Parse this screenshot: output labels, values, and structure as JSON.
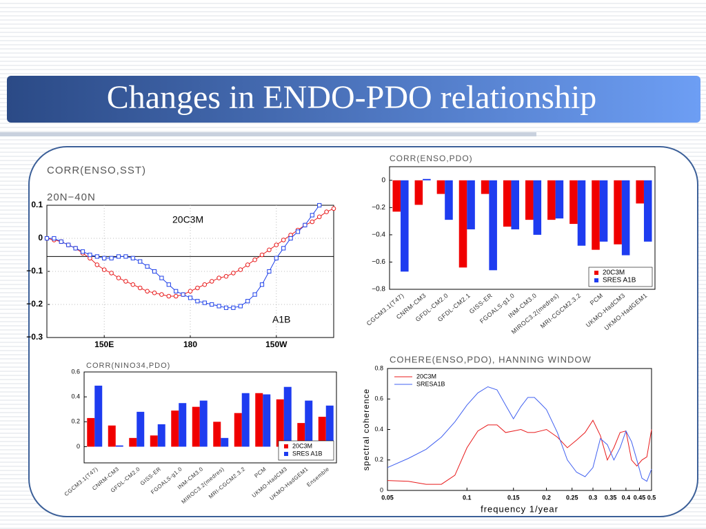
{
  "title": "Changes in ENDO-PDO relationship",
  "chart_data": [
    {
      "type": "line",
      "title": "CORR(ENSO,SST)",
      "subtitle": "20N−40N",
      "x": [
        130,
        132.5,
        135,
        137.5,
        140,
        142.5,
        145,
        147.5,
        150,
        152.5,
        155,
        157.5,
        160,
        162.5,
        165,
        167.5,
        170,
        172.5,
        175,
        177.5,
        180,
        182.5,
        185,
        187.5,
        190,
        192.5,
        195,
        197.5,
        200,
        202.5,
        205,
        207.5,
        210,
        212.5,
        215,
        217.5,
        220,
        222.5,
        225,
        227.5,
        230
      ],
      "series": [
        {
          "name": "20C3M",
          "color": "#e8191a",
          "marker": "circle",
          "values": [
            0,
            -0.005,
            -0.01,
            -0.02,
            -0.03,
            -0.045,
            -0.06,
            -0.08,
            -0.095,
            -0.105,
            -0.12,
            -0.13,
            -0.14,
            -0.15,
            -0.16,
            -0.165,
            -0.17,
            -0.175,
            -0.175,
            -0.17,
            -0.16,
            -0.15,
            -0.14,
            -0.13,
            -0.12,
            -0.115,
            -0.105,
            -0.095,
            -0.08,
            -0.065,
            -0.05,
            -0.035,
            -0.02,
            -0.005,
            0.01,
            0.025,
            0.04,
            0.05,
            0.065,
            0.08,
            0.09
          ]
        },
        {
          "name": "A1B",
          "color": "#1d3fe8",
          "marker": "square",
          "values": [
            0,
            0,
            -0.01,
            -0.02,
            -0.03,
            -0.04,
            -0.05,
            -0.055,
            -0.06,
            -0.06,
            -0.055,
            -0.055,
            -0.06,
            -0.07,
            -0.085,
            -0.1,
            -0.12,
            -0.14,
            -0.16,
            -0.17,
            -0.18,
            -0.19,
            -0.195,
            -0.2,
            -0.205,
            -0.21,
            -0.21,
            -0.205,
            -0.19,
            -0.17,
            -0.14,
            -0.1,
            -0.06,
            -0.03,
            0,
            0.02,
            0.04,
            0.07,
            0.1,
            null,
            null
          ]
        }
      ],
      "reference_line": -0.055,
      "xlim": [
        130,
        230
      ],
      "xticks": [
        {
          "value": 150,
          "label": "150E"
        },
        180,
        {
          "value": 210,
          "label": "150W"
        }
      ],
      "ylim": [
        -0.3,
        0.1
      ],
      "yticks": [
        0.1,
        0,
        {
          "value": -0.1,
          "label": "−0.1"
        },
        {
          "value": -0.2,
          "label": "−0.2"
        },
        {
          "value": -0.3,
          "label": "−0.3"
        }
      ],
      "grid": true
    },
    {
      "type": "bar",
      "title": "CORR(ENSO,PDO)",
      "categories": [
        "CGCM3.1(T47)",
        "CNRM-CM3",
        "GFDL-CM2.0",
        "GFDL-CM2.1",
        "GISS-ER",
        "FGOALS-g1.0",
        "INM-CM3.0",
        "MIROC3.2(medres)",
        "MRI-CGCM2.3.2",
        "PCM",
        "UKMO-HadCM3",
        "UKMO-HadGEM1"
      ],
      "series": [
        {
          "name": "20C3M",
          "color": "#f00000",
          "values": [
            -0.23,
            -0.18,
            -0.1,
            -0.64,
            -0.1,
            -0.34,
            -0.29,
            -0.29,
            -0.32,
            -0.51,
            -0.47,
            -0.17
          ]
        },
        {
          "name": "SRES A1B",
          "color": "#1e3cf0",
          "values": [
            -0.67,
            0.01,
            -0.29,
            -0.36,
            -0.66,
            -0.36,
            -0.4,
            -0.28,
            -0.48,
            -0.45,
            -0.55,
            -0.45
          ]
        }
      ],
      "ylim": [
        -0.8,
        0.1
      ],
      "yticks": [
        0,
        {
          "value": -0.2,
          "label": "−0.2"
        },
        {
          "value": -0.4,
          "label": "−0.4"
        },
        {
          "value": -0.6,
          "label": "−0.6"
        },
        {
          "value": -0.8,
          "label": "−0.8"
        }
      ],
      "legend": "lower right"
    },
    {
      "type": "bar",
      "title": "CORR(NINO34,PDO)",
      "categories": [
        "CGCM3.1(T47)",
        "CNRM-CM3",
        "GFDL-CM2.0",
        "GISS-ER",
        "FGOALS-g1.0",
        "INM-CM3.0",
        "MIROC3.2(medres)",
        "MRI-CGCM2.3.2",
        "PCM",
        "UKMO-HadCM3",
        "UKMO-HadGEM1",
        "Ensemble"
      ],
      "series": [
        {
          "name": "20C3M",
          "color": "#f00000",
          "values": [
            0.23,
            0.17,
            0.07,
            0.09,
            0.29,
            0.32,
            0.2,
            0.27,
            0.43,
            0.38,
            0.19,
            0.24
          ]
        },
        {
          "name": "SRES A1B",
          "color": "#1e3cf0",
          "values": [
            0.49,
            0.01,
            0.28,
            0.18,
            0.35,
            0.37,
            0.07,
            0.43,
            0.42,
            0.48,
            0.37,
            0.33
          ]
        }
      ],
      "ylim": [
        -0.13,
        0.6
      ],
      "yticks": [
        0,
        0.2,
        0.4,
        0.6
      ],
      "legend": "lower right"
    },
    {
      "type": "line",
      "title": "COHERE(ENSO,PDO), HANNING WINDOW",
      "xlabel": "frequency 1/year",
      "ylabel": "spectral coherence",
      "xscale": "log",
      "x": [
        0.05,
        0.06,
        0.07,
        0.08,
        0.09,
        0.1,
        0.11,
        0.12,
        0.13,
        0.14,
        0.15,
        0.16,
        0.17,
        0.18,
        0.19,
        0.2,
        0.22,
        0.24,
        0.26,
        0.28,
        0.3,
        0.32,
        0.34,
        0.36,
        0.38,
        0.4,
        0.42,
        0.44,
        0.46,
        0.48,
        0.5
      ],
      "series": [
        {
          "name": "20C3M",
          "color": "#e8191a",
          "values": [
            0.065,
            0.06,
            0.04,
            0.04,
            0.1,
            0.28,
            0.39,
            0.43,
            0.43,
            0.38,
            0.39,
            0.4,
            0.38,
            0.38,
            0.39,
            0.4,
            0.35,
            0.28,
            0.33,
            0.38,
            0.46,
            0.36,
            0.2,
            0.28,
            0.38,
            0.39,
            0.2,
            0.16,
            0.2,
            0.22,
            0.4
          ]
        },
        {
          "name": "SRESA1B",
          "color": "#4060f0",
          "values": [
            0.15,
            0.21,
            0.27,
            0.35,
            0.45,
            0.56,
            0.64,
            0.68,
            0.66,
            0.56,
            0.47,
            0.55,
            0.61,
            0.61,
            0.57,
            0.53,
            0.38,
            0.2,
            0.12,
            0.09,
            0.15,
            0.34,
            0.3,
            0.2,
            0.28,
            0.39,
            0.32,
            0.2,
            0.08,
            0.06,
            0.14
          ]
        }
      ],
      "xlim": [
        0.05,
        0.5
      ],
      "xticks": [
        0.05,
        0.1,
        0.15,
        0.2,
        0.25,
        0.3,
        0.35,
        0.4,
        0.45,
        0.5
      ],
      "ylim": [
        0,
        0.8
      ],
      "yticks": [
        0,
        0.2,
        0.4,
        0.6,
        0.8
      ],
      "legend": "upper left"
    }
  ]
}
